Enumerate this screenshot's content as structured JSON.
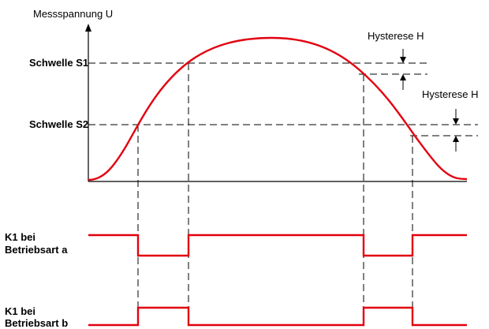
{
  "axis": {
    "y_label": "Messspannung U"
  },
  "thresholds": {
    "s1_label": "Schwelle S1",
    "s2_label": "Schwelle S2",
    "hysteresis_s1_label": "Hysterese H",
    "hysteresis_s2_label": "Hysterese H"
  },
  "relays": {
    "a": {
      "line1": "K1 bei",
      "line2": "Betriebsart a"
    },
    "b": {
      "line1": "K1 bei",
      "line2": "Betriebsart b"
    }
  },
  "colors": {
    "signal": "#e3000f",
    "lines": "#000000"
  }
}
